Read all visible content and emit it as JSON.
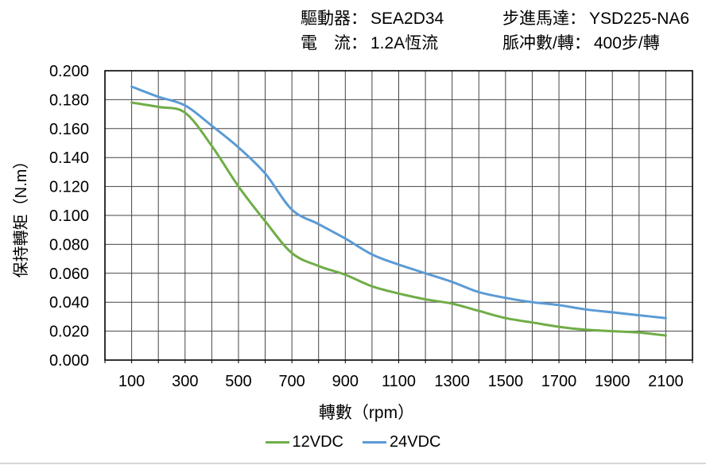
{
  "header": {
    "driver": {
      "label": "驅動器：",
      "value": "SEA2D34"
    },
    "current": {
      "label": "電　流：",
      "value": "1.2A恆流"
    },
    "motor": {
      "label": "步進馬達：",
      "value": "YSD225-NA6"
    },
    "pulses": {
      "label": "脈冲數/轉：",
      "value": "400步/轉"
    }
  },
  "chart_data": {
    "type": "line",
    "title": "",
    "xlabel": "轉數（rpm）",
    "ylabel": "保持轉矩（N.m）",
    "x": [
      100,
      200,
      300,
      400,
      500,
      600,
      700,
      800,
      900,
      1000,
      1100,
      1200,
      1300,
      1400,
      1500,
      1600,
      1700,
      1800,
      1900,
      2000,
      2100
    ],
    "series": [
      {
        "name": "12VDC",
        "color": "#70AD47",
        "values": [
          0.178,
          0.175,
          0.171,
          0.148,
          0.12,
          0.096,
          0.074,
          0.065,
          0.059,
          0.051,
          0.046,
          0.042,
          0.039,
          0.034,
          0.029,
          0.026,
          0.023,
          0.021,
          0.02,
          0.019,
          0.017
        ]
      },
      {
        "name": "24VDC",
        "color": "#5B9BD5",
        "values": [
          0.189,
          0.182,
          0.176,
          0.162,
          0.147,
          0.129,
          0.104,
          0.094,
          0.084,
          0.073,
          0.066,
          0.06,
          0.054,
          0.047,
          0.043,
          0.04,
          0.038,
          0.035,
          0.033,
          0.031,
          0.029
        ]
      }
    ],
    "xlim": [
      0,
      2200
    ],
    "ylim": [
      0,
      0.2
    ],
    "x_grid_step": 100,
    "y_grid_step": 0.02,
    "x_tick_values": [
      100,
      300,
      500,
      700,
      900,
      1100,
      1300,
      1500,
      1700,
      1900,
      2100
    ],
    "x_tick_labels": [
      "100",
      "300",
      "500",
      "700",
      "900",
      "1100",
      "1300",
      "1500",
      "1700",
      "1900",
      "2100"
    ],
    "y_tick_labels": [
      "0.000",
      "0.020",
      "0.040",
      "0.060",
      "0.080",
      "0.100",
      "0.120",
      "0.140",
      "0.160",
      "0.180",
      "0.200"
    ],
    "grid": true,
    "legend_position": "bottom",
    "grid_color": "#454545",
    "border_color": "#000000",
    "tick_color": "#000000"
  }
}
